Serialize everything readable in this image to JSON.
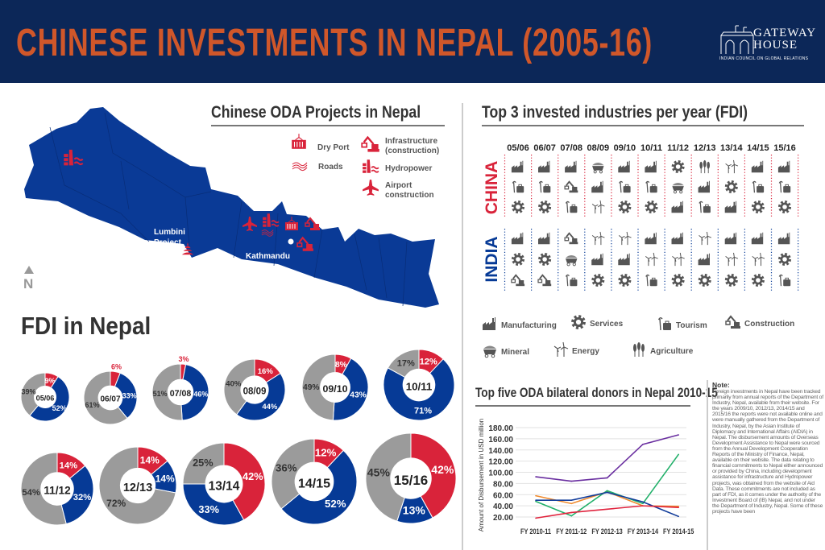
{
  "header": {
    "title": "CHINESE INVESTMENTS IN NEPAL (2005-16)",
    "logo": {
      "line1": "GATEWAY",
      "line2": "HOUSE",
      "subtitle": "INDIAN COUNCIL ON GLOBAL RELATIONS"
    }
  },
  "colors": {
    "header_bg": "#0c2758",
    "title": "#d0572a",
    "china_red": "#d9233a",
    "india_blue": "#063a96",
    "other_gray": "#9b9b9b",
    "map": "#0a3a96"
  },
  "oda_map": {
    "title": "Chinese ODA Projects in Nepal",
    "legend": [
      {
        "icon": "dry-port-icon",
        "label": "Dry Port"
      },
      {
        "icon": "roads-icon",
        "label": "Roads"
      },
      {
        "icon": "construction-icon",
        "label": "Infrastructure (construction)"
      },
      {
        "icon": "hydropower-icon",
        "label": "Hydropower"
      },
      {
        "icon": "airplane-icon",
        "label": "Airport construction"
      }
    ],
    "places": {
      "lumbini": "Lumbini Project",
      "kathmandu": "Kathmandu"
    },
    "north": "N"
  },
  "fdi": {
    "title": "FDI in Nepal",
    "donuts": [
      {
        "year": "05/06",
        "china": 9,
        "india": 52,
        "other": 39
      },
      {
        "year": "06/07",
        "china": 6,
        "india": 33,
        "other": 61
      },
      {
        "year": "07/08",
        "china": 3,
        "india": 46,
        "other": 51
      },
      {
        "year": "08/09",
        "china": 16,
        "india": 44,
        "other": 40
      },
      {
        "year": "09/10",
        "china": 8,
        "india": 43,
        "other": 49
      },
      {
        "year": "10/11",
        "china": 12,
        "india": 71,
        "other": 17
      },
      {
        "year": "11/12",
        "china": 14,
        "india": 32,
        "other": 54
      },
      {
        "year": "12/13",
        "china": 14,
        "india": 14,
        "other": 72
      },
      {
        "year": "13/14",
        "china": 42,
        "india": 33,
        "other": 25
      },
      {
        "year": "14/15",
        "china": 12,
        "india": 52,
        "other": 36
      },
      {
        "year": "15/16",
        "china": 42,
        "india": 13,
        "other": 45
      }
    ]
  },
  "top3": {
    "title": "Top 3 invested industries per year (FDI)",
    "years": [
      "05/06",
      "06/07",
      "07/08",
      "08/09",
      "09/10",
      "10/11",
      "11/12",
      "12/13",
      "13/14",
      "14/15",
      "15/16"
    ],
    "china_label": "CHINA",
    "india_label": "INDIA",
    "china": [
      [
        "manufacturing",
        "tourism",
        "services"
      ],
      [
        "manufacturing",
        "tourism",
        "services"
      ],
      [
        "manufacturing",
        "construction",
        "tourism"
      ],
      [
        "mineral",
        "manufacturing",
        "energy"
      ],
      [
        "manufacturing",
        "tourism",
        "services"
      ],
      [
        "manufacturing",
        "tourism",
        "services"
      ],
      [
        "services",
        "mineral",
        "manufacturing"
      ],
      [
        "agriculture",
        "manufacturing",
        "tourism"
      ],
      [
        "energy",
        "services",
        "manufacturing"
      ],
      [
        "manufacturing",
        "tourism",
        "services"
      ],
      [
        "manufacturing",
        "tourism",
        "services"
      ]
    ],
    "india": [
      [
        "manufacturing",
        "services",
        "construction"
      ],
      [
        "manufacturing",
        "services",
        "construction"
      ],
      [
        "construction",
        "mineral",
        "tourism"
      ],
      [
        "energy",
        "manufacturing",
        "services"
      ],
      [
        "energy",
        "manufacturing",
        "services"
      ],
      [
        "manufacturing",
        "energy",
        "tourism"
      ],
      [
        "manufacturing",
        "energy",
        "services"
      ],
      [
        "energy",
        "manufacturing",
        "services"
      ],
      [
        "manufacturing",
        "energy",
        "services"
      ],
      [
        "manufacturing",
        "energy",
        "services"
      ],
      [
        "manufacturing",
        "services",
        "tourism"
      ]
    ],
    "legend": [
      {
        "icon": "manufacturing",
        "label": "Manufacturing"
      },
      {
        "icon": "services",
        "label": "Services"
      },
      {
        "icon": "tourism",
        "label": "Tourism"
      },
      {
        "icon": "construction",
        "label": "Construction"
      },
      {
        "icon": "mineral",
        "label": "Mineral"
      },
      {
        "icon": "energy",
        "label": "Energy"
      },
      {
        "icon": "agriculture",
        "label": "Agriculture"
      }
    ]
  },
  "chart_data": {
    "type": "line",
    "title": "Top five ODA bilateral donors in Nepal 2010-15",
    "xlabel": "",
    "ylabel": "Amount of Disbursement in USD million",
    "categories": [
      "FY 2010-11",
      "FY 2011-12",
      "FY 2012-13",
      "FY 2013-14",
      "FY 2014-15"
    ],
    "yticks": [
      "20.00",
      "40.00",
      "60.00",
      "80.00",
      "100.00",
      "120.00",
      "140.00",
      "160.00",
      "180.00"
    ],
    "ylim": [
      20,
      180
    ],
    "grid": true,
    "series": [
      {
        "color": "#6a2fa0",
        "values": [
          92,
          84,
          90,
          150,
          167
        ]
      },
      {
        "color": "#f08a2c",
        "values": [
          58,
          44,
          65,
          40,
          39
        ]
      },
      {
        "color": "#22b06a",
        "values": [
          48,
          22,
          67,
          44,
          132
        ]
      },
      {
        "color": "#123c9a",
        "values": [
          50,
          50,
          64,
          47,
          21
        ]
      },
      {
        "color": "#e0243e",
        "values": [
          18,
          28,
          34,
          40,
          37
        ]
      }
    ]
  },
  "note": {
    "heading": "Note:",
    "text": "Foreign investments in Nepal have been tracked primarily from annual reports of the Department of Industry, Nepal, available from their website. For the years 2009/10, 2012/13, 2014/15 and 2015/16 the reports were not available online and were manually gathered from the Department of Industry, Nepal, by the Asian Institute of Diplomacy and International Affairs (AIDIA) in Nepal. The disbursement amounts of Overseas Development Assistance to Nepal were sourced from the Annual Development Cooperation Reports of the Ministry of Finance, Nepal, available on their website. The data relating to financial commitments to Nepal either announced or provided by China, including development assistance for infrastructure and Hydropower projects, was obtained from the website of Aid Data. These commitments are not included as part of FDI, as it comes under the authority of the Investment Board of (IB) Nepal, and not under the Department of Industry, Nepal. Some of these projects have been"
  }
}
